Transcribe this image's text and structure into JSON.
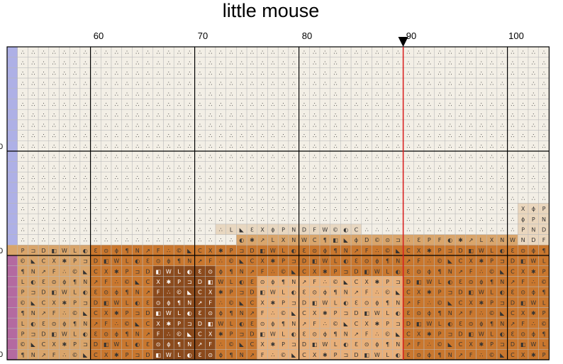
{
  "title": "little mouse",
  "column_numbers": [
    "60",
    "70",
    "80",
    "90",
    "100"
  ],
  "row_numbers": [
    "0",
    "0",
    "0"
  ],
  "marker": {
    "column": 90,
    "color": "#e02020"
  },
  "colors": {
    "background_cell": "#f3efe6",
    "edge_strip": "#aeb0e6",
    "grid_minor": "#b8b8b8",
    "grid_major": "#000000",
    "tan": "#d9a56b",
    "orange": "#c9772e",
    "dark": "#8b4a1c"
  }
}
